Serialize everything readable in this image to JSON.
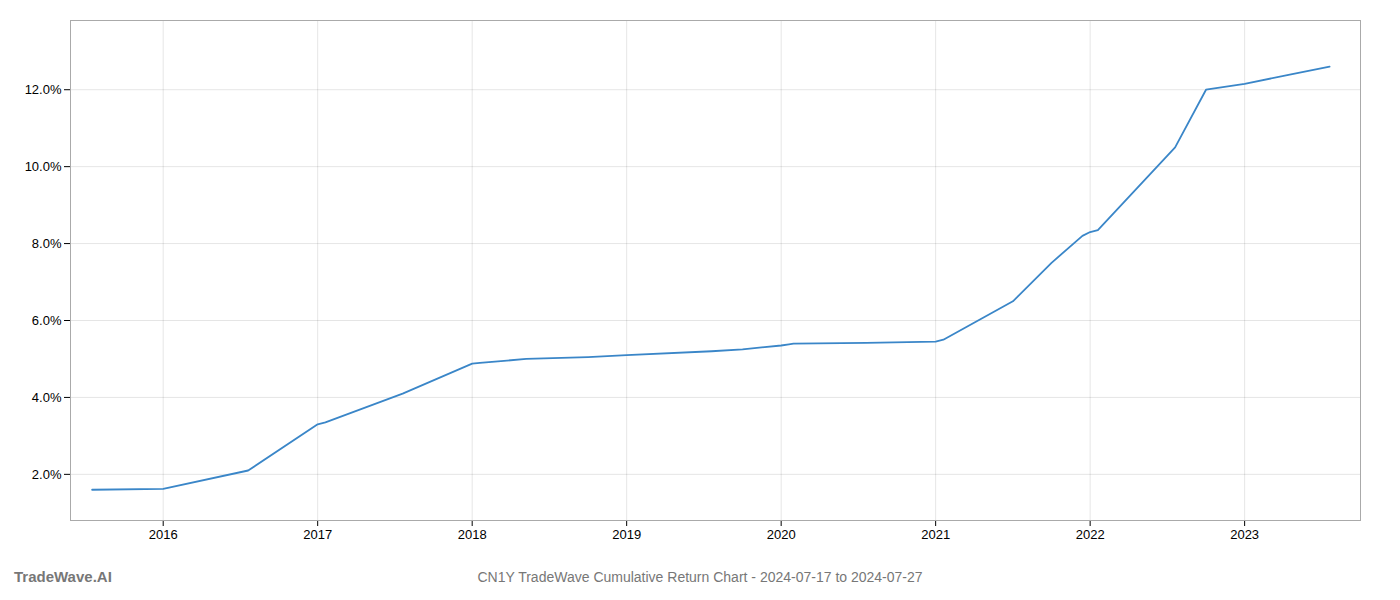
{
  "chart_data": {
    "type": "line",
    "title": "CN1Y TradeWave Cumulative Return Chart - 2024-07-17 to 2024-07-27",
    "annotations": [
      "TradeWave.AI"
    ],
    "x": [
      2015.54,
      2016.0,
      2016.55,
      2017.0,
      2017.05,
      2017.55,
      2018.0,
      2018.05,
      2018.35,
      2018.75,
      2019.0,
      2019.55,
      2019.75,
      2020.0,
      2020.05,
      2020.08,
      2020.55,
      2021.0,
      2021.05,
      2021.5,
      2021.75,
      2021.95,
      2022.0,
      2022.05,
      2022.55,
      2022.75,
      2023.0,
      2023.3,
      2023.55
    ],
    "values": [
      1.6,
      1.62,
      2.1,
      3.3,
      3.35,
      4.1,
      4.88,
      4.9,
      5.0,
      5.05,
      5.1,
      5.2,
      5.25,
      5.35,
      5.38,
      5.4,
      5.42,
      5.45,
      5.5,
      6.5,
      7.5,
      8.2,
      8.3,
      8.35,
      10.5,
      12.0,
      12.15,
      12.4,
      12.6
    ],
    "color": "#3a86c8",
    "xlim": [
      2015.4,
      2023.75
    ],
    "ylim": [
      0.8,
      13.8
    ],
    "xticks": [
      2016,
      2017,
      2018,
      2019,
      2020,
      2021,
      2022,
      2023
    ],
    "yticks": [
      {
        "value": 2.0,
        "label": "2.0%"
      },
      {
        "value": 4.0,
        "label": "4.0%"
      },
      {
        "value": 6.0,
        "label": "6.0%"
      },
      {
        "value": 8.0,
        "label": "8.0%"
      },
      {
        "value": 10.0,
        "label": "10.0%"
      },
      {
        "value": 12.0,
        "label": "12.0%"
      }
    ],
    "grid": true
  }
}
